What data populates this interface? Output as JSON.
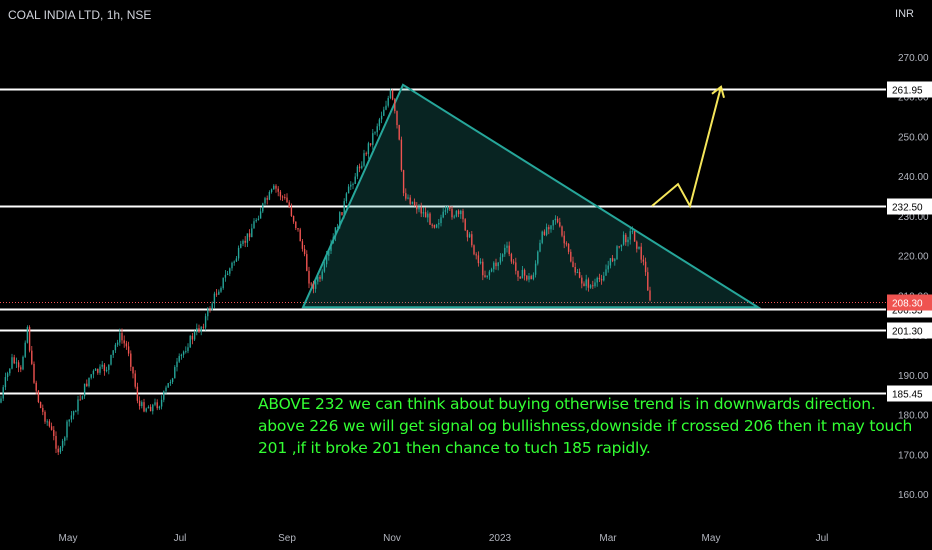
{
  "header": {
    "title": "COAL INDIA LTD, 1h, NSE",
    "currency": "INR"
  },
  "annotation_lines": [
    "ABOVE 232  we can think about buying otherwise trend is in downwards direction.",
    "above 226 we will get signal og bullishness,downside if crossed 206 then it may touch",
    "201 ,if it broke 201 then chance to tuch 185 rapidly."
  ],
  "colors": {
    "up": "#26a69a",
    "down": "#ef5350",
    "triangle": "#26a69a",
    "arrow": "#f5e65a",
    "annotation": "#33ff33",
    "current_price": "#ef5350"
  },
  "chart_data": {
    "type": "candlestick",
    "price_axis_ticks": [
      "270.00",
      "260.00",
      "250.00",
      "240.00",
      "230.00",
      "220.00",
      "210.00",
      "200.00",
      "190.00",
      "180.00",
      "170.00",
      "160.00"
    ],
    "time_axis_ticks": [
      "May",
      "Jul",
      "Sep",
      "Nov",
      "2023",
      "Mar",
      "May",
      "Jul"
    ],
    "ylim": [
      157,
      277
    ],
    "horizontal_levels": [
      {
        "value": 261.95,
        "label": "261.95"
      },
      {
        "value": 232.5,
        "label": "232.50"
      },
      {
        "value": 206.55,
        "label": "206.55"
      },
      {
        "value": 201.3,
        "label": "201.30"
      },
      {
        "value": 185.45,
        "label": "185.45"
      }
    ],
    "current_price": {
      "value": 208.3,
      "label": "208.30"
    },
    "triangle": {
      "vertices": [
        {
          "date": "Sep 12",
          "price": 207
        },
        {
          "date": "Nov 6",
          "price": 263
        },
        {
          "date": "Apr 12",
          "price": 207
        }
      ]
    },
    "projection_path": [
      {
        "date": "Feb 12",
        "price": 232.5
      },
      {
        "date": "Feb 22",
        "price": 238
      },
      {
        "date": "Mar 1",
        "price": 232.5
      },
      {
        "date": "Mar 18",
        "price": 262
      }
    ],
    "close_path": [
      {
        "date": "Mar 25",
        "price": 183
      },
      {
        "date": "Apr 1",
        "price": 188
      },
      {
        "date": "Apr 10",
        "price": 194
      },
      {
        "date": "Apr 20",
        "price": 190
      },
      {
        "date": "Apr 28",
        "price": 203
      },
      {
        "date": "May 2",
        "price": 192
      },
      {
        "date": "May 6",
        "price": 182
      },
      {
        "date": "May 10",
        "price": 178
      },
      {
        "date": "May 16",
        "price": 170
      },
      {
        "date": "May 20",
        "price": 178
      },
      {
        "date": "May 25",
        "price": 183
      },
      {
        "date": "Jun 1",
        "price": 190
      },
      {
        "date": "Jun 10",
        "price": 192
      },
      {
        "date": "Jun 15",
        "price": 200
      },
      {
        "date": "Jun 20",
        "price": 196
      },
      {
        "date": "Jun 25",
        "price": 182
      },
      {
        "date": "Jul 1",
        "price": 182
      },
      {
        "date": "Jul 6",
        "price": 183
      },
      {
        "date": "Jul 12",
        "price": 190
      },
      {
        "date": "Jul 20",
        "price": 198
      },
      {
        "date": "Jul 28",
        "price": 203
      },
      {
        "date": "Aug 5",
        "price": 211
      },
      {
        "date": "Aug 12",
        "price": 217
      },
      {
        "date": "Aug 20",
        "price": 224
      },
      {
        "date": "Aug 28",
        "price": 232
      },
      {
        "date": "Sep 5",
        "price": 237
      },
      {
        "date": "Sep 12",
        "price": 233
      },
      {
        "date": "Sep 18",
        "price": 225
      },
      {
        "date": "Sep 24",
        "price": 212
      },
      {
        "date": "Sep 30",
        "price": 215
      },
      {
        "date": "Oct 8",
        "price": 228
      },
      {
        "date": "Oct 15",
        "price": 238
      },
      {
        "date": "Oct 22",
        "price": 245
      },
      {
        "date": "Oct 28",
        "price": 252
      },
      {
        "date": "Nov 3",
        "price": 258
      },
      {
        "date": "Nov 6",
        "price": 261
      },
      {
        "date": "Nov 10",
        "price": 250
      },
      {
        "date": "Nov 12",
        "price": 236
      },
      {
        "date": "Nov 20",
        "price": 232
      },
      {
        "date": "Nov 28",
        "price": 228
      },
      {
        "date": "Dec 5",
        "price": 231
      },
      {
        "date": "Dec 12",
        "price": 230
      },
      {
        "date": "Dec 18",
        "price": 222
      },
      {
        "date": "Dec 24",
        "price": 215
      },
      {
        "date": "Dec 30",
        "price": 218
      },
      {
        "date": "Jan 5",
        "price": 222
      },
      {
        "date": "Jan 10",
        "price": 216
      },
      {
        "date": "Jan 18",
        "price": 214
      },
      {
        "date": "Jan 24",
        "price": 226
      },
      {
        "date": "Jan 30",
        "price": 230
      },
      {
        "date": "Feb 4",
        "price": 224
      },
      {
        "date": "Feb 12",
        "price": 214
      },
      {
        "date": "Feb 20",
        "price": 212
      },
      {
        "date": "Feb 28",
        "price": 218
      },
      {
        "date": "Mar 5",
        "price": 224
      },
      {
        "date": "Mar 10",
        "price": 226
      },
      {
        "date": "Mar 16",
        "price": 218
      },
      {
        "date": "Mar 20",
        "price": 208
      }
    ]
  }
}
